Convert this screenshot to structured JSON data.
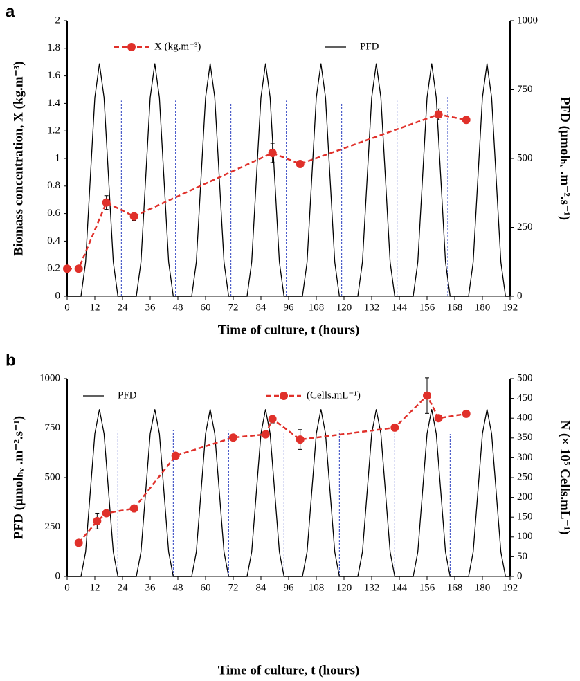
{
  "chart_data": [
    {
      "type": "line",
      "panel": "a",
      "x_label": "Time of culture, t (hours)",
      "y_label": "Biomass concentration, X (kg.m⁻³)",
      "y2_label": "PFD (µmolₕᵥ .m⁻².s⁻¹)",
      "xlim": [
        0,
        192
      ],
      "xticks": [
        0,
        12,
        24,
        36,
        48,
        60,
        72,
        84,
        96,
        108,
        120,
        132,
        144,
        156,
        168,
        180,
        192
      ],
      "ylim": [
        0,
        2
      ],
      "yticks": [
        0,
        0.2,
        0.4,
        0.6,
        0.8,
        1,
        1.2,
        1.4,
        1.6,
        1.8,
        2
      ],
      "y2lim": [
        0,
        1000
      ],
      "y2ticks": [
        0,
        250,
        500,
        750,
        1000
      ],
      "series": [
        {
          "name": "X (kg.m⁻³)",
          "color": "#e0302a",
          "style": "dashed",
          "marker": "circle",
          "axis": "y",
          "x": [
            0,
            5,
            17,
            29,
            89,
            101,
            161,
            173
          ],
          "values": [
            0.2,
            0.2,
            0.68,
            0.58,
            1.04,
            0.96,
            1.32,
            1.28
          ],
          "errors": [
            0,
            0,
            0.05,
            0.03,
            0.07,
            0,
            0.04,
            0
          ]
        },
        {
          "name": "PFD",
          "color": "#000000",
          "style": "solid",
          "axis": "y2",
          "x": [
            0,
            2,
            4,
            6,
            8,
            10,
            12,
            14,
            16,
            18,
            20,
            22,
            24,
            26,
            28,
            30,
            32,
            34,
            36,
            38,
            40,
            42,
            44,
            46,
            48,
            50,
            52,
            54,
            56,
            58,
            60,
            62,
            64,
            66,
            68,
            70,
            72,
            74,
            76,
            78,
            80,
            82,
            84,
            86,
            88,
            90,
            92,
            94,
            96,
            98,
            100,
            102,
            104,
            106,
            108,
            110,
            112,
            114,
            116,
            118,
            120,
            122,
            124,
            126,
            128,
            130,
            132,
            134,
            136,
            138,
            140,
            142,
            144,
            146,
            148,
            150,
            152,
            154,
            156,
            158,
            160,
            162,
            164,
            166,
            168,
            170,
            172,
            174,
            176,
            178,
            180,
            182,
            184,
            186,
            188,
            190,
            192
          ],
          "values": [
            0,
            0,
            0,
            0,
            124,
            423,
            721,
            845,
            721,
            423,
            124,
            0,
            0,
            0,
            0,
            0,
            124,
            423,
            721,
            845,
            721,
            423,
            124,
            0,
            0,
            0,
            0,
            0,
            124,
            423,
            721,
            845,
            721,
            423,
            124,
            0,
            0,
            0,
            0,
            0,
            124,
            423,
            721,
            845,
            721,
            423,
            124,
            0,
            0,
            0,
            0,
            0,
            124,
            423,
            721,
            845,
            721,
            423,
            124,
            0,
            0,
            0,
            0,
            0,
            124,
            423,
            721,
            845,
            721,
            423,
            124,
            0,
            0,
            0,
            0,
            0,
            124,
            423,
            721,
            845,
            721,
            423,
            124,
            0,
            0,
            0,
            0,
            0,
            124,
            423,
            721,
            845,
            721,
            423,
            124,
            0,
            0
          ]
        }
      ],
      "ref_lines": {
        "color": "#2a3fc0",
        "axis": "y",
        "x": [
          23.5,
          47,
          71,
          95,
          119,
          143,
          165
        ],
        "values": [
          1.42,
          1.42,
          1.4,
          1.42,
          1.4,
          1.42,
          1.45
        ]
      }
    },
    {
      "type": "line",
      "panel": "b",
      "x_label": "Time of culture, t (hours)",
      "y_label": "PFD (µmolₕᵥ .m⁻².s⁻¹)",
      "y2_label": "N (× 10⁵ Cells.mL⁻¹)",
      "xlim": [
        0,
        192
      ],
      "xticks": [
        0,
        12,
        24,
        36,
        48,
        60,
        72,
        84,
        96,
        108,
        120,
        132,
        144,
        156,
        168,
        180,
        192
      ],
      "ylim": [
        0,
        1000
      ],
      "yticks": [
        0,
        250,
        500,
        750,
        1000
      ],
      "y2lim": [
        0,
        500
      ],
      "y2ticks": [
        0,
        50,
        100,
        150,
        200,
        250,
        300,
        350,
        400,
        450,
        500
      ],
      "series": [
        {
          "name": "PFD",
          "color": "#000000",
          "style": "solid",
          "axis": "y",
          "x": [
            0,
            2,
            4,
            6,
            8,
            10,
            12,
            14,
            16,
            18,
            20,
            22,
            24,
            26,
            28,
            30,
            32,
            34,
            36,
            38,
            40,
            42,
            44,
            46,
            48,
            50,
            52,
            54,
            56,
            58,
            60,
            62,
            64,
            66,
            68,
            70,
            72,
            74,
            76,
            78,
            80,
            82,
            84,
            86,
            88,
            90,
            92,
            94,
            96,
            98,
            100,
            102,
            104,
            106,
            108,
            110,
            112,
            114,
            116,
            118,
            120,
            122,
            124,
            126,
            128,
            130,
            132,
            134,
            136,
            138,
            140,
            142,
            144,
            146,
            148,
            150,
            152,
            154,
            156,
            158,
            160,
            162,
            164,
            166,
            168,
            170,
            172,
            174,
            176,
            178,
            180,
            182,
            184,
            186,
            188,
            190,
            192
          ],
          "values": [
            0,
            0,
            0,
            0,
            124,
            423,
            721,
            845,
            721,
            423,
            124,
            0,
            0,
            0,
            0,
            0,
            124,
            423,
            721,
            845,
            721,
            423,
            124,
            0,
            0,
            0,
            0,
            0,
            124,
            423,
            721,
            845,
            721,
            423,
            124,
            0,
            0,
            0,
            0,
            0,
            124,
            423,
            721,
            845,
            721,
            423,
            124,
            0,
            0,
            0,
            0,
            0,
            124,
            423,
            721,
            845,
            721,
            423,
            124,
            0,
            0,
            0,
            0,
            0,
            124,
            423,
            721,
            845,
            721,
            423,
            124,
            0,
            0,
            0,
            0,
            0,
            124,
            423,
            721,
            845,
            721,
            423,
            124,
            0,
            0,
            0,
            0,
            0,
            124,
            423,
            721,
            845,
            721,
            423,
            124,
            0,
            0
          ]
        },
        {
          "name": "(Cells.mL⁻¹)",
          "color": "#e0302a",
          "style": "dashed",
          "marker": "circle",
          "axis": "y2",
          "x": [
            5,
            13,
            17,
            29,
            47,
            72,
            86,
            89,
            101,
            142,
            156,
            161,
            173
          ],
          "values": [
            85,
            140,
            160,
            172,
            305,
            351,
            359,
            398,
            346,
            376,
            457,
            400,
            411
          ],
          "errors": [
            0,
            20,
            0,
            7,
            0,
            0,
            0,
            10,
            25,
            0,
            45,
            0,
            0
          ]
        }
      ],
      "ref_lines": {
        "color": "#2a3fc0",
        "axis": "y",
        "x": [
          22,
          46,
          70,
          94,
          118,
          142,
          166
        ],
        "values": [
          735,
          738,
          735,
          733,
          735,
          735,
          720
        ]
      }
    }
  ]
}
